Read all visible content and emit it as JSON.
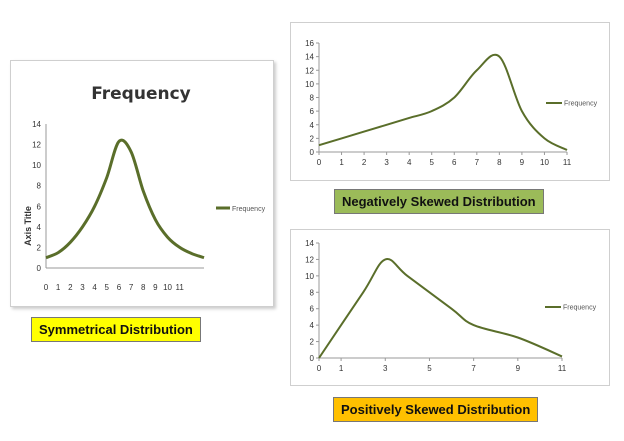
{
  "captions": {
    "symmetrical": {
      "text": "Symmetrical Distribution",
      "color": "#ffff00"
    },
    "negative": {
      "text": "Negatively Skewed Distribution",
      "color": "#9bbb59"
    },
    "positive": {
      "text": "Positively Skewed Distribution",
      "color": "#ffc000"
    }
  },
  "line_color": "#5a6e2a",
  "chart_data": [
    {
      "type": "line",
      "title": "Frequency",
      "ylabel": "Axis Title",
      "xlabel": "",
      "x_tick_labels": [
        "0",
        "1",
        "2",
        "3",
        "4",
        "5",
        "6",
        "7",
        "8",
        "9",
        "10",
        "11"
      ],
      "ylim": [
        0,
        14
      ],
      "y_ticks": [
        0,
        2,
        4,
        6,
        8,
        10,
        12,
        14
      ],
      "legend": "right",
      "series": [
        {
          "name": "Frequency",
          "x": [
            0,
            1,
            2,
            3,
            4,
            5,
            6,
            7,
            8,
            9,
            10,
            11,
            12,
            13
          ],
          "values": [
            1,
            1.5,
            2.5,
            4,
            6,
            8.8,
            12.3,
            11.3,
            7.5,
            4.7,
            3,
            2,
            1.4,
            1
          ]
        }
      ]
    },
    {
      "type": "line",
      "title": "",
      "xlim": [
        0,
        11
      ],
      "ylim": [
        0,
        16
      ],
      "x_ticks": [
        0,
        1,
        2,
        3,
        4,
        5,
        6,
        7,
        8,
        9,
        10,
        11
      ],
      "y_ticks": [
        0,
        2,
        4,
        6,
        8,
        10,
        12,
        14,
        16
      ],
      "legend": "right",
      "series": [
        {
          "name": "Frequency",
          "x": [
            0,
            1,
            2,
            3,
            4,
            5,
            6,
            7,
            8,
            9,
            10,
            11
          ],
          "values": [
            1,
            2,
            3,
            4,
            5,
            6,
            8,
            12,
            14,
            6,
            2,
            0.3
          ]
        }
      ]
    },
    {
      "type": "line",
      "title": "",
      "xlim": [
        0,
        11
      ],
      "ylim": [
        0,
        14
      ],
      "x_ticks": [
        0,
        1,
        3,
        5,
        7,
        9,
        11
      ],
      "y_ticks": [
        0,
        2,
        4,
        6,
        8,
        10,
        12,
        14
      ],
      "legend": "right",
      "series": [
        {
          "name": "Frequency",
          "x": [
            0,
            2,
            3,
            4,
            6,
            7,
            9,
            11
          ],
          "values": [
            0,
            8,
            12,
            10,
            6,
            4,
            2.5,
            0.2
          ]
        }
      ]
    }
  ]
}
